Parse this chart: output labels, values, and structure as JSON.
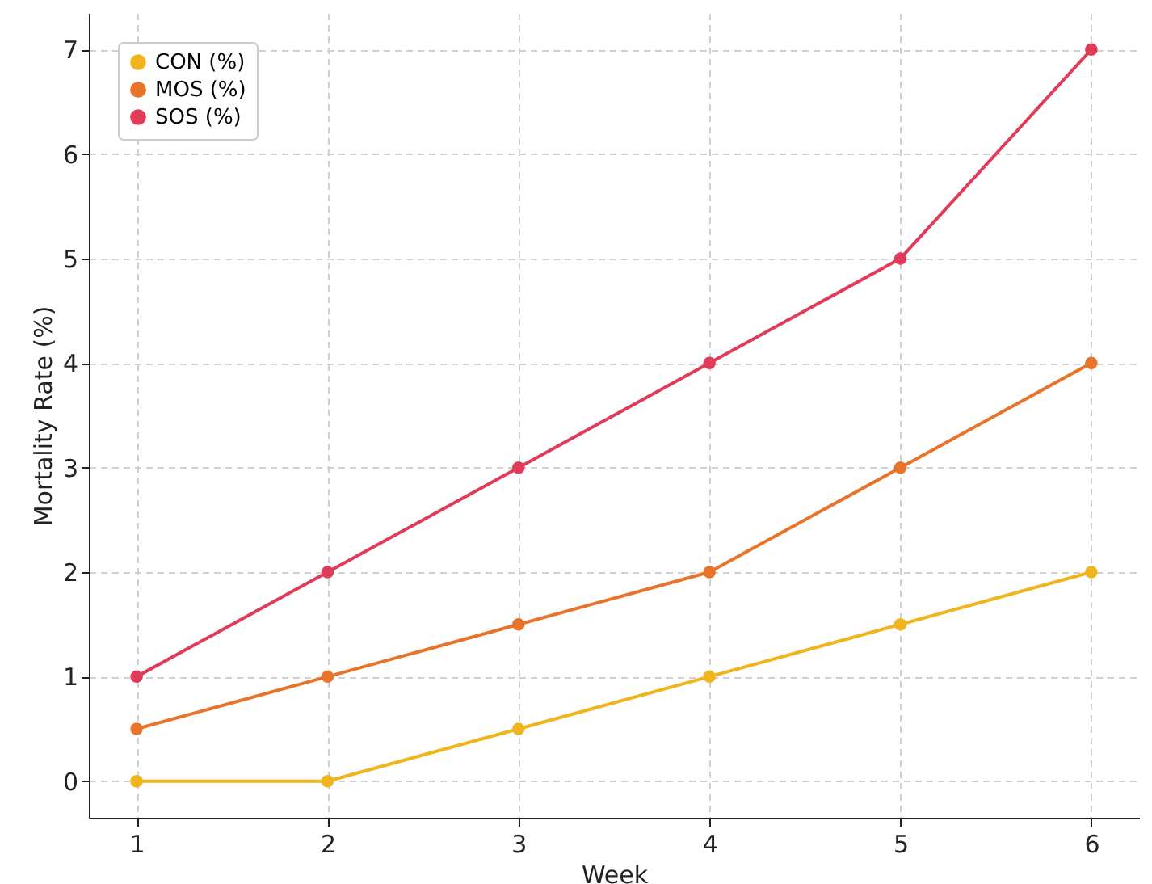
{
  "chart_data": {
    "type": "line",
    "xlabel": "Week",
    "ylabel": "Mortality Rate (%)",
    "x": [
      1,
      2,
      3,
      4,
      5,
      6
    ],
    "series": [
      {
        "name": "CON (%)",
        "color": "#f0b41c",
        "values": [
          0,
          0,
          0.5,
          1,
          1.5,
          2
        ]
      },
      {
        "name": "MOS (%)",
        "color": "#e8732a",
        "values": [
          0.5,
          1,
          1.5,
          2,
          3,
          4
        ]
      },
      {
        "name": "SOS (%)",
        "color": "#e03c5a",
        "values": [
          1,
          2,
          3,
          4,
          5,
          7
        ]
      }
    ],
    "xlim": [
      0.75,
      6.25
    ],
    "xticks": [
      1,
      2,
      3,
      4,
      5,
      6
    ],
    "ylim": [
      -0.35,
      7.35
    ],
    "yticks": [
      0,
      1,
      2,
      3,
      4,
      5,
      6,
      7
    ],
    "grid": true,
    "legend": "top left",
    "marker": "circle",
    "line_style": "solid"
  }
}
